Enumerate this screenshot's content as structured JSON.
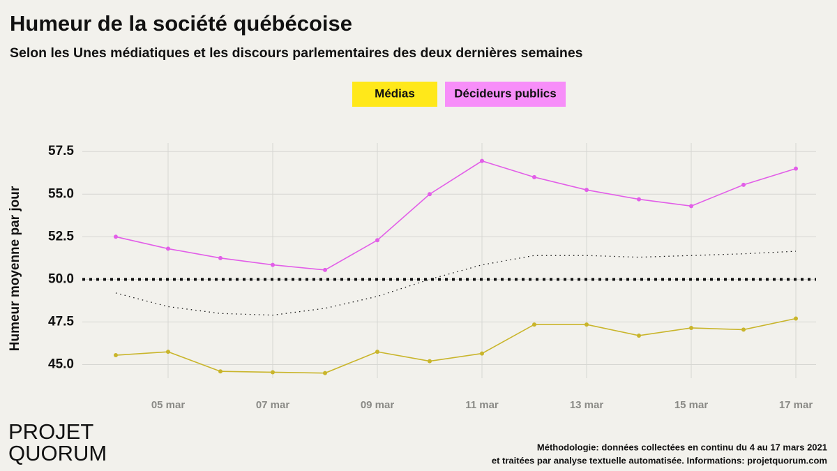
{
  "chart_data": {
    "type": "line",
    "title": "Humeur de la société québécoise",
    "subtitle": "Selon les Unes médiatiques et les discours parlementaires des deux dernières semaines",
    "y_label": "Humeur moyenne par jour",
    "categories": [
      null,
      "05 mar",
      null,
      "07 mar",
      null,
      "09 mar",
      null,
      "11 mar",
      null,
      "13 mar",
      null,
      "15 mar",
      null,
      "17 mar"
    ],
    "series": [
      {
        "name": "Médias",
        "color": "#c9b52b",
        "legend_color": "#ffe81a",
        "values": [
          45.55,
          45.75,
          44.6,
          44.55,
          44.5,
          45.75,
          45.2,
          45.65,
          47.35,
          47.35,
          46.7,
          47.15,
          47.05,
          47.7
        ]
      },
      {
        "name": "Décideurs publics",
        "color": "#e25ee8",
        "legend_color": "#f78ef9",
        "values": [
          52.5,
          51.8,
          51.25,
          50.85,
          50.55,
          52.3,
          55.0,
          56.95,
          56.0,
          55.25,
          54.7,
          54.3,
          55.55,
          56.5
        ]
      }
    ],
    "trend": {
      "color": "#111111",
      "values": [
        49.2,
        48.4,
        48.0,
        47.9,
        48.3,
        49.0,
        50.0,
        50.85,
        51.4,
        51.4,
        51.3,
        51.4,
        51.5,
        51.65
      ]
    },
    "reference_line": 50,
    "ylim": [
      44.2,
      58
    ],
    "yticks": [
      {
        "value": 45,
        "label": "45.0"
      },
      47.5,
      {
        "value": 50,
        "label": "50.0"
      },
      52.5,
      {
        "value": 55,
        "label": "55.0"
      },
      57.5
    ],
    "grid": true
  },
  "logo": {
    "line1": "PROJET",
    "line2": "QUORUM"
  },
  "footnote": {
    "line1": "Méthodologie: données collectées en continu du 4 au 17 mars 2021",
    "line2": "et traitées par analyse textuelle automatisée. Informations: projetquorum.com"
  }
}
